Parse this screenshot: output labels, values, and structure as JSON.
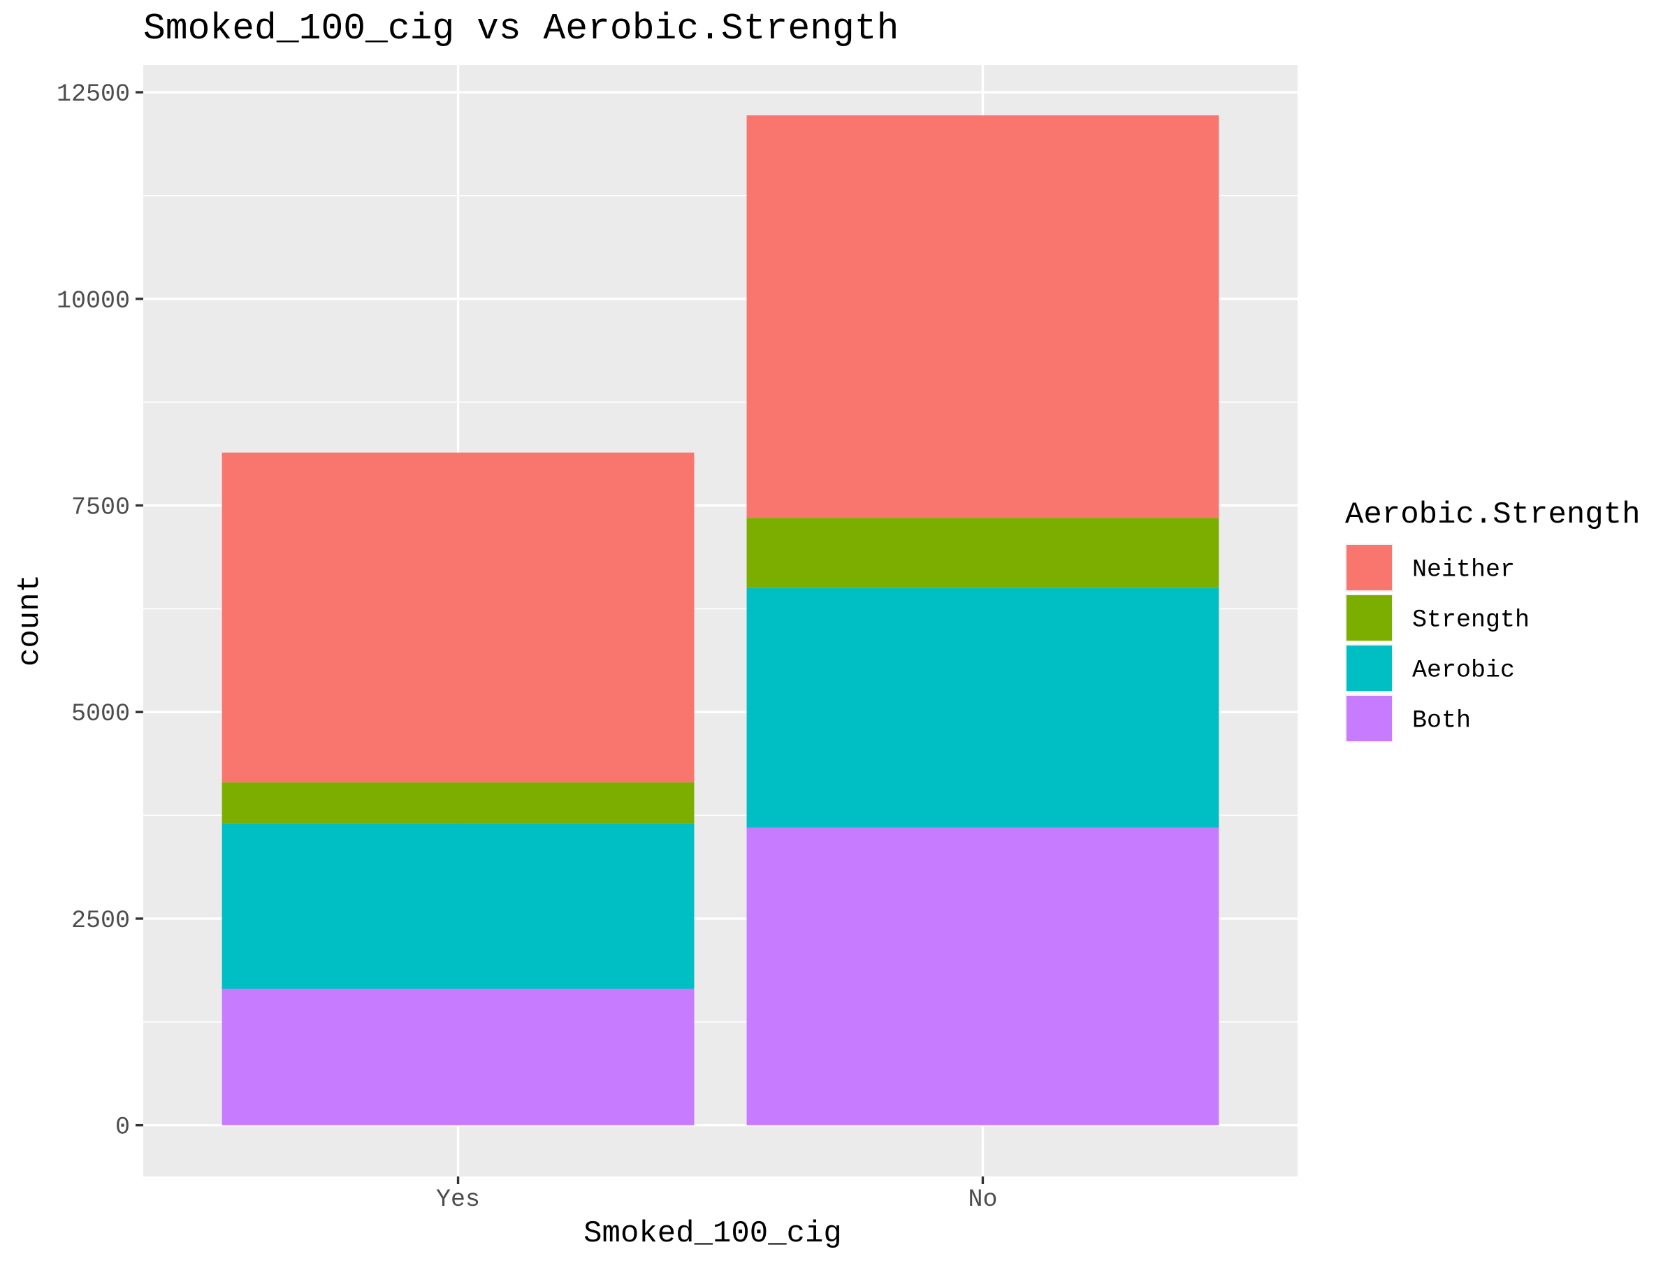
{
  "chart_data": {
    "type": "bar",
    "stacked": true,
    "title": "Smoked_100_cig vs Aerobic.Strength",
    "xlabel": "Smoked_100_cig",
    "ylabel": "count",
    "categories": [
      "Yes",
      "No"
    ],
    "ylim": [
      -620,
      12830
    ],
    "yticks": [
      0,
      2500,
      5000,
      7500,
      10000,
      12500
    ],
    "ytick_labels": [
      "0",
      "2500",
      "5000",
      "7500",
      "10000",
      "12500"
    ],
    "grid": true,
    "legend": {
      "title": "Aerobic.Strength",
      "position": "right"
    },
    "series": [
      {
        "name": "Both",
        "color": "#c77cff",
        "values": [
          1650,
          3600
        ]
      },
      {
        "name": "Aerobic",
        "color": "#00bfc4",
        "values": [
          2000,
          2900
        ]
      },
      {
        "name": "Strength",
        "color": "#7cae00",
        "values": [
          500,
          850
        ]
      },
      {
        "name": "Neither",
        "color": "#f8766d",
        "values": [
          3990,
          4870
        ]
      }
    ],
    "legend_order": [
      "Neither",
      "Strength",
      "Aerobic",
      "Both"
    ]
  }
}
